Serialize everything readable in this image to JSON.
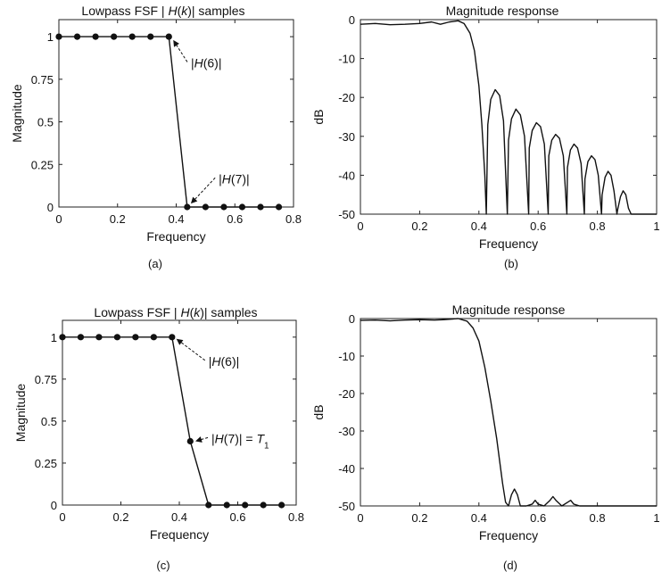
{
  "chart_data": [
    {
      "id": "a",
      "type": "line",
      "title_parts": [
        {
          "text": "Lowpass FSF | ",
          "italic": false
        },
        {
          "text": "H",
          "italic": true
        },
        {
          "text": "(",
          "italic": false
        },
        {
          "text": "k",
          "italic": true
        },
        {
          "text": ")| samples",
          "italic": false
        }
      ],
      "xlabel": "Frequency",
      "ylabel": "Magnitude",
      "caption": "(a)",
      "xlim": [
        0,
        0.8
      ],
      "ylim": [
        0,
        1.1
      ],
      "xticks": [
        0,
        0.2,
        0.4,
        0.6,
        0.8
      ],
      "xtick_labels": [
        "0",
        "0.2",
        "0.4",
        "0.6",
        "0.8"
      ],
      "yticks": [
        0,
        0.25,
        0.5,
        0.75,
        1
      ],
      "ytick_labels": [
        "0",
        "0.25",
        "0.5",
        "0.75",
        "1"
      ],
      "grid": false,
      "series": [
        {
          "marker": "dot",
          "x": [
            0,
            0.0625,
            0.125,
            0.1875,
            0.25,
            0.3125,
            0.375,
            0.4375,
            0.5,
            0.5625,
            0.625,
            0.6875,
            0.75
          ],
          "y": [
            1,
            1,
            1,
            1,
            1,
            1,
            1,
            0,
            0,
            0,
            0,
            0,
            0
          ]
        }
      ],
      "annotations": [
        {
          "parts": [
            {
              "text": "|",
              "italic": false
            },
            {
              "text": "H",
              "italic": true
            },
            {
              "text": "(6)|",
              "italic": false
            }
          ],
          "x": 0.45,
          "y": 0.82,
          "arrow_to": [
            0.39,
            0.98
          ]
        },
        {
          "parts": [
            {
              "text": "|",
              "italic": false
            },
            {
              "text": "H",
              "italic": true
            },
            {
              "text": "(7)|",
              "italic": false
            }
          ],
          "x": 0.545,
          "y": 0.14,
          "arrow_to": [
            0.45,
            0.02
          ]
        }
      ]
    },
    {
      "id": "b",
      "type": "line",
      "title_parts": [
        {
          "text": "Magnitude response",
          "italic": false
        }
      ],
      "xlabel": "Frequency",
      "ylabel": "dB",
      "caption": "(b)",
      "xlim": [
        0,
        1
      ],
      "ylim": [
        -50,
        0
      ],
      "xticks": [
        0,
        0.2,
        0.4,
        0.6,
        0.8,
        1
      ],
      "xtick_labels": [
        "0",
        "0.2",
        "0.4",
        "0.6",
        "0.8",
        "1"
      ],
      "yticks": [
        -50,
        -40,
        -30,
        -20,
        -10,
        0
      ],
      "ytick_labels": [
        "-50",
        "-40",
        "-30",
        "-20",
        "-10",
        "0"
      ],
      "grid": false,
      "series": [
        {
          "marker": "none",
          "x": [
            0,
            0.05,
            0.1,
            0.15,
            0.2,
            0.24,
            0.27,
            0.3,
            0.33,
            0.35,
            0.37,
            0.385,
            0.4,
            0.41,
            0.42,
            0.425,
            0.43,
            0.44,
            0.455,
            0.47,
            0.483,
            0.496,
            0.5,
            0.51,
            0.525,
            0.54,
            0.554,
            0.568,
            0.57,
            0.58,
            0.594,
            0.608,
            0.621,
            0.634,
            0.636,
            0.646,
            0.659,
            0.672,
            0.685,
            0.697,
            0.699,
            0.709,
            0.721,
            0.733,
            0.745,
            0.756,
            0.758,
            0.768,
            0.78,
            0.792,
            0.803,
            0.814,
            0.816,
            0.826,
            0.836,
            0.846,
            0.856,
            0.866,
            0.868,
            0.878,
            0.887,
            0.896,
            0.905,
            0.914,
            1
          ],
          "y": [
            -1.2,
            -1.0,
            -1.3,
            -1.2,
            -1.0,
            -0.6,
            -1.2,
            -0.6,
            -0.3,
            -1.0,
            -3.5,
            -8,
            -17,
            -27,
            -40,
            -50,
            -27,
            -20.5,
            -18,
            -19.5,
            -26,
            -50,
            -31,
            -25.5,
            -23,
            -24.5,
            -30,
            -50,
            -33,
            -28.5,
            -26.5,
            -27.5,
            -32,
            -50,
            -35,
            -31,
            -29.5,
            -30.5,
            -35,
            -50,
            -38,
            -33.5,
            -32,
            -33,
            -37,
            -50,
            -41,
            -36.5,
            -35,
            -36,
            -40,
            -50,
            -45,
            -40.5,
            -39,
            -40,
            -44,
            -50,
            -49,
            -45.5,
            -44,
            -45,
            -48.5,
            -50,
            -50
          ]
        }
      ],
      "annotations": []
    },
    {
      "id": "c",
      "type": "line",
      "title_parts": [
        {
          "text": "Lowpass FSF | ",
          "italic": false
        },
        {
          "text": "H",
          "italic": true
        },
        {
          "text": "(",
          "italic": false
        },
        {
          "text": "k",
          "italic": true
        },
        {
          "text": ")| samples",
          "italic": false
        }
      ],
      "xlabel": "Frequency",
      "ylabel": "Magnitude",
      "caption": "(c)",
      "xlim": [
        0,
        0.8
      ],
      "ylim": [
        0,
        1.1
      ],
      "xticks": [
        0,
        0.2,
        0.4,
        0.6,
        0.8
      ],
      "xtick_labels": [
        "0",
        "0.2",
        "0.4",
        "0.6",
        "0.8"
      ],
      "yticks": [
        0,
        0.25,
        0.5,
        0.75,
        1
      ],
      "ytick_labels": [
        "0",
        "0.25",
        "0.5",
        "0.75",
        "1"
      ],
      "grid": false,
      "series": [
        {
          "marker": "dot",
          "x": [
            0,
            0.0625,
            0.125,
            0.1875,
            0.25,
            0.3125,
            0.375,
            0.4375,
            0.5,
            0.5625,
            0.625,
            0.6875,
            0.75
          ],
          "y": [
            1,
            1,
            1,
            1,
            1,
            1,
            1,
            0.38,
            0,
            0,
            0,
            0,
            0
          ]
        }
      ],
      "annotations": [
        {
          "parts": [
            {
              "text": "|",
              "italic": false
            },
            {
              "text": "H",
              "italic": true
            },
            {
              "text": "(6)|",
              "italic": false
            }
          ],
          "x": 0.5,
          "y": 0.83,
          "arrow_to": [
            0.39,
            0.99
          ]
        },
        {
          "parts": [
            {
              "text": "|",
              "italic": false
            },
            {
              "text": "H",
              "italic": true
            },
            {
              "text": "(7)| = ",
              "italic": false
            },
            {
              "text": "T",
              "italic": true
            },
            {
              "text": "1",
              "italic": false,
              "sub": true
            }
          ],
          "x": 0.51,
          "y": 0.37,
          "arrow_to": [
            0.455,
            0.38
          ]
        }
      ]
    },
    {
      "id": "d",
      "type": "line",
      "title_parts": [
        {
          "text": "Magnitude response",
          "italic": false
        }
      ],
      "xlabel": "Frequency",
      "ylabel": "dB",
      "caption": "(d)",
      "xlim": [
        0,
        1
      ],
      "ylim": [
        -50,
        0
      ],
      "xticks": [
        0,
        0.2,
        0.4,
        0.6,
        0.8,
        1
      ],
      "xtick_labels": [
        "0",
        "0.2",
        "0.4",
        "0.6",
        "0.8",
        "1"
      ],
      "yticks": [
        -50,
        -40,
        -30,
        -20,
        -10,
        0
      ],
      "ytick_labels": [
        "-50",
        "-40",
        "-30",
        "-20",
        "-10",
        "0"
      ],
      "grid": false,
      "series": [
        {
          "marker": "none",
          "x": [
            0,
            0.05,
            0.1,
            0.15,
            0.2,
            0.25,
            0.28,
            0.3,
            0.33,
            0.36,
            0.38,
            0.4,
            0.42,
            0.44,
            0.46,
            0.47,
            0.48,
            0.49,
            0.5,
            0.51,
            0.52,
            0.53,
            0.54,
            0.56,
            0.58,
            0.59,
            0.6,
            0.62,
            0.64,
            0.65,
            0.66,
            0.68,
            0.7,
            0.71,
            0.72,
            0.74,
            0.8,
            1
          ],
          "y": [
            -0.5,
            -0.4,
            -0.6,
            -0.4,
            -0.3,
            -0.4,
            -0.3,
            -0.2,
            0,
            -0.7,
            -2.5,
            -6,
            -13,
            -22,
            -32,
            -38,
            -44,
            -49,
            -50,
            -47,
            -45.5,
            -47,
            -50,
            -50,
            -49.5,
            -48.5,
            -49.5,
            -50,
            -48.5,
            -47.5,
            -48.5,
            -50,
            -49,
            -48.5,
            -49.5,
            -50,
            -50,
            -50
          ]
        }
      ],
      "annotations": []
    }
  ]
}
